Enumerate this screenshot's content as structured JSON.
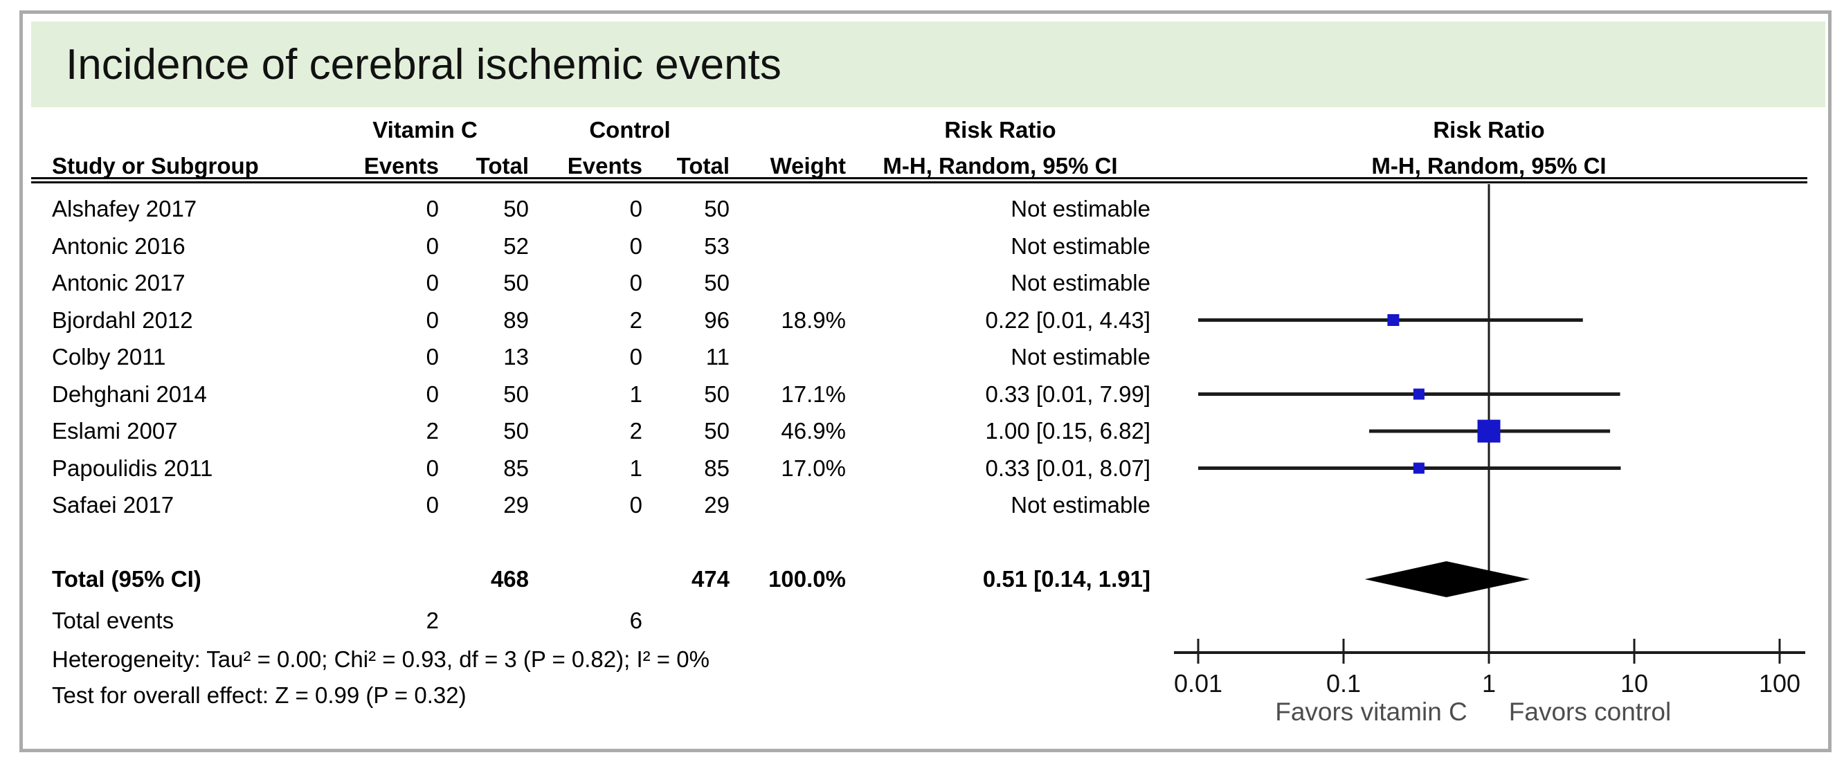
{
  "title": "Incidence of cerebral ischemic events",
  "colors": {
    "banner_green": "#e2efda",
    "marker_blue": "#1616cb",
    "border_gray": "#ababab",
    "line_black": "#1c1c1c",
    "favors_gray": "#4d4d4d"
  },
  "table": {
    "group_headers": {
      "vitamin_c": "Vitamin C",
      "control": "Control",
      "risk_ratio_text": "Risk Ratio",
      "risk_ratio_plot": "Risk Ratio"
    },
    "col_headers": {
      "study": "Study or Subgroup",
      "events_vitamin_c": "Events",
      "total_vitamin_c": "Total",
      "events_control": "Events",
      "total_control": "Total",
      "weight": "Weight",
      "mh_text": "M-H, Random, 95% CI",
      "mh_plot": "M-H, Random, 95% CI"
    },
    "rows": [
      {
        "study": "Alshafey 2017",
        "ev1": "0",
        "tot1": "50",
        "ev2": "0",
        "tot2": "50",
        "weight": "",
        "rr": "Not estimable"
      },
      {
        "study": "Antonic 2016",
        "ev1": "0",
        "tot1": "52",
        "ev2": "0",
        "tot2": "53",
        "weight": "",
        "rr": "Not estimable"
      },
      {
        "study": "Antonic 2017",
        "ev1": "0",
        "tot1": "50",
        "ev2": "0",
        "tot2": "50",
        "weight": "",
        "rr": "Not estimable"
      },
      {
        "study": "Bjordahl 2012",
        "ev1": "0",
        "tot1": "89",
        "ev2": "2",
        "tot2": "96",
        "weight": "18.9%",
        "rr": "0.22 [0.01, 4.43]"
      },
      {
        "study": "Colby 2011",
        "ev1": "0",
        "tot1": "13",
        "ev2": "0",
        "tot2": "11",
        "weight": "",
        "rr": "Not estimable"
      },
      {
        "study": "Dehghani 2014",
        "ev1": "0",
        "tot1": "50",
        "ev2": "1",
        "tot2": "50",
        "weight": "17.1%",
        "rr": "0.33 [0.01, 7.99]"
      },
      {
        "study": "Eslami 2007",
        "ev1": "2",
        "tot1": "50",
        "ev2": "2",
        "tot2": "50",
        "weight": "46.9%",
        "rr": "1.00 [0.15, 6.82]"
      },
      {
        "study": "Papoulidis 2011",
        "ev1": "0",
        "tot1": "85",
        "ev2": "1",
        "tot2": "85",
        "weight": "17.0%",
        "rr": "0.33 [0.01, 8.07]"
      },
      {
        "study": "Safaei 2017",
        "ev1": "0",
        "tot1": "29",
        "ev2": "0",
        "tot2": "29",
        "weight": "",
        "rr": "Not estimable"
      }
    ],
    "total_row": {
      "label": "Total (95% CI)",
      "total_vitamin_c": "468",
      "total_control": "474",
      "weight": "100.0%",
      "rr": "0.51 [0.14, 1.91]"
    },
    "total_events": {
      "label": "Total events",
      "vitamin_c": "2",
      "control": "6"
    },
    "heterogeneity": "Heterogeneity: Tau² = 0.00; Chi² = 0.93, df = 3 (P = 0.82); I² = 0%",
    "overall_effect": "Test for overall effect: Z = 0.99 (P = 0.32)"
  },
  "chart_data": {
    "type": "forest",
    "x_scale": "log10",
    "x_range": [
      0.01,
      100
    ],
    "x_ticks": [
      0.01,
      0.1,
      1,
      10,
      100
    ],
    "x_tick_labels": [
      "0.01",
      "0.1",
      "1",
      "10",
      "100"
    ],
    "null_line": 1,
    "favors_left": "Favors vitamin C",
    "favors_right": "Favors control",
    "studies": [
      {
        "name": "Bjordahl 2012",
        "estimate": 0.22,
        "ci_low": 0.01,
        "ci_high": 4.43,
        "weight_pct": 18.9
      },
      {
        "name": "Dehghani 2014",
        "estimate": 0.33,
        "ci_low": 0.01,
        "ci_high": 7.99,
        "weight_pct": 17.1
      },
      {
        "name": "Eslami 2007",
        "estimate": 1.0,
        "ci_low": 0.15,
        "ci_high": 6.82,
        "weight_pct": 46.9
      },
      {
        "name": "Papoulidis 2011",
        "estimate": 0.33,
        "ci_low": 0.01,
        "ci_high": 8.07,
        "weight_pct": 17.0
      }
    ],
    "summary": {
      "label": "Total (95% CI)",
      "estimate": 0.51,
      "ci_low": 0.14,
      "ci_high": 1.91
    }
  }
}
